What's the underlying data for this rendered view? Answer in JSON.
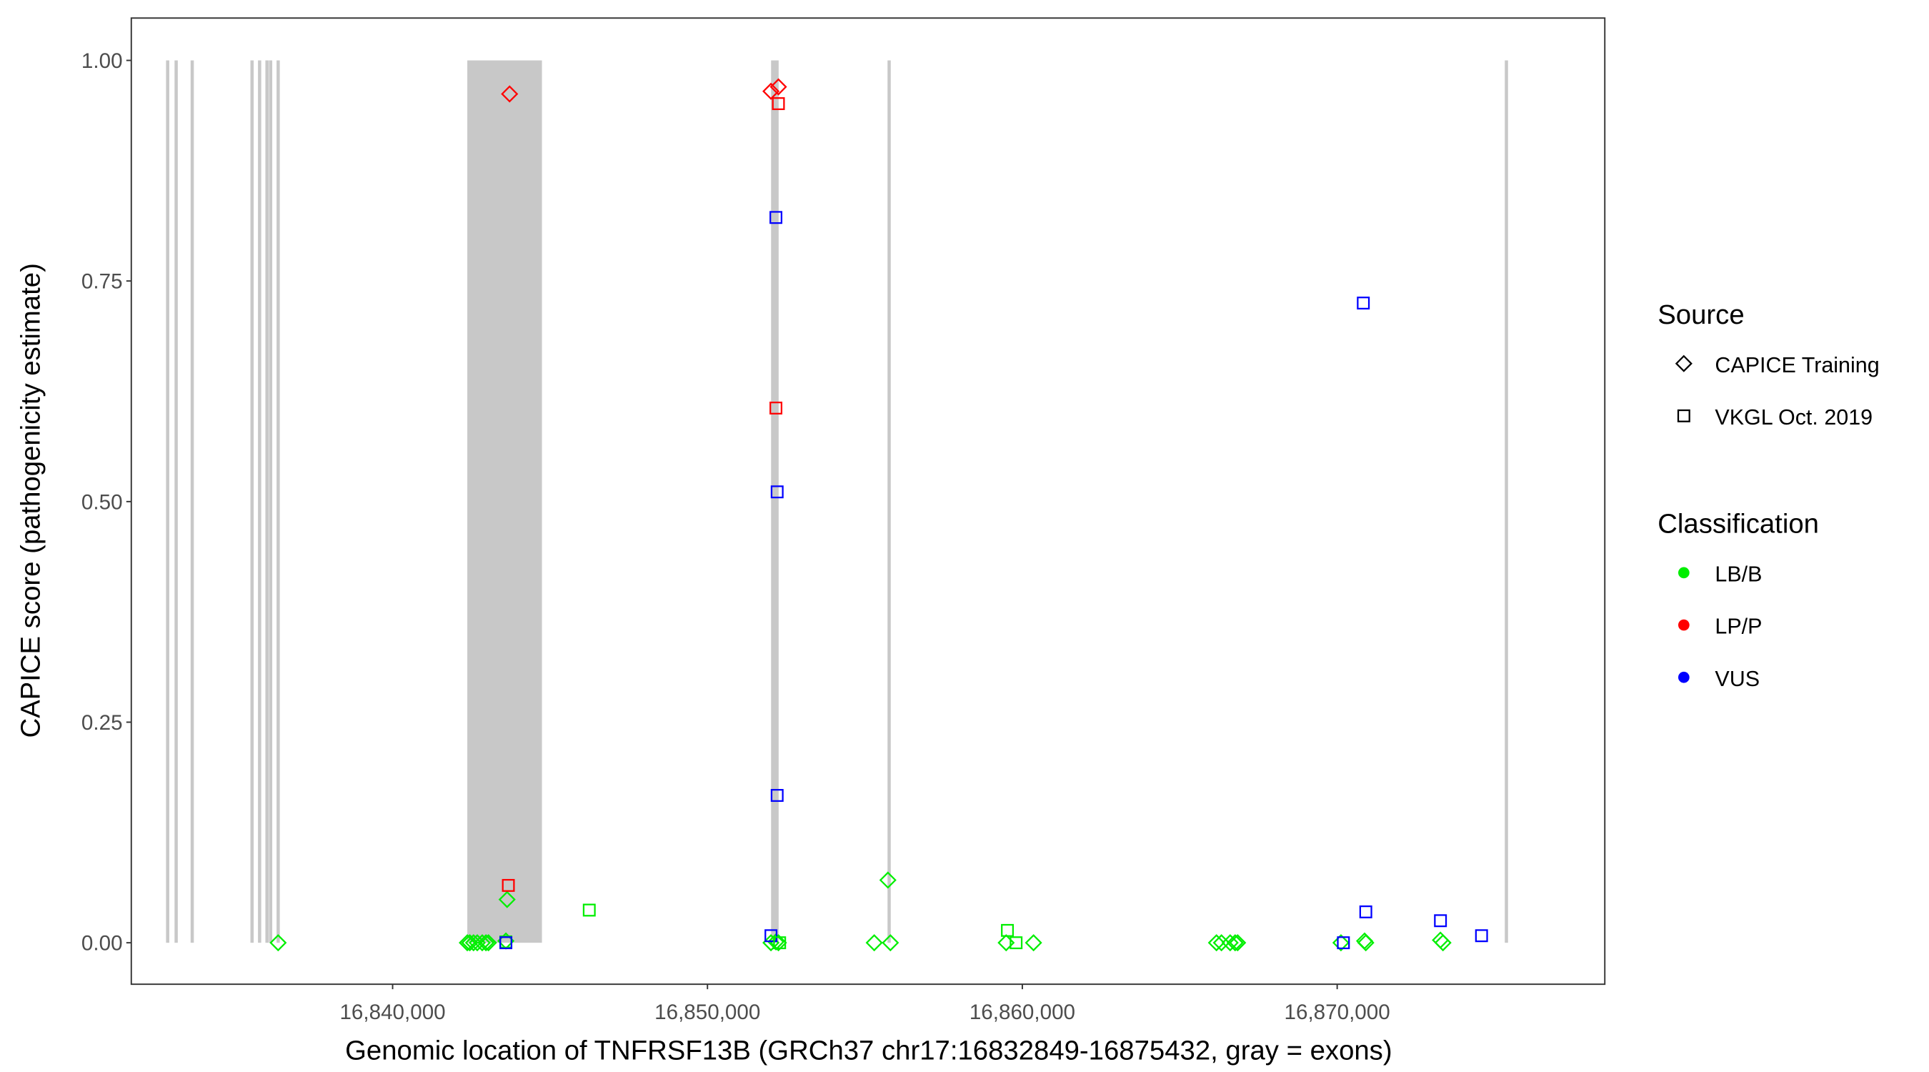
{
  "chart_data": {
    "type": "scatter",
    "xlabel": "Genomic location of TNFRSF13B (GRCh37 chr17:16832849-16875432, gray = exons)",
    "ylabel": "CAPICE score (pathogenicity estimate)",
    "xlim": [
      16831700,
      16878500
    ],
    "ylim": [
      -0.047,
      1.048
    ],
    "x_ticks": [
      16840000,
      16850000,
      16860000,
      16870000
    ],
    "x_tick_labels": [
      "16,840,000",
      "16,850,000",
      "16,860,000",
      "16,870,000"
    ],
    "y_ticks": [
      0,
      0.25,
      0.5,
      0.75,
      1.0
    ],
    "y_tick_labels": [
      "0.00",
      "0.25",
      "0.50",
      "0.75",
      "1.00"
    ],
    "grid": false,
    "exons": [
      [
        16832830,
        16832880
      ],
      [
        16833100,
        16833150
      ],
      [
        16833610,
        16833660
      ],
      [
        16835510,
        16835560
      ],
      [
        16835750,
        16835800
      ],
      [
        16835985,
        16836035
      ],
      [
        16836100,
        16836150
      ],
      [
        16836340,
        16836390
      ],
      [
        16842372,
        16844743
      ],
      [
        16852020,
        16852260
      ],
      [
        16855740,
        16855800
      ],
      [
        16875350,
        16875400
      ]
    ],
    "exon_color": "#c8c8c8",
    "legend": {
      "placement": "right",
      "source": {
        "title": "Source",
        "entries": [
          {
            "label": "CAPICE Training",
            "shape": "diamond"
          },
          {
            "label": "VKGL Oct. 2019",
            "shape": "square"
          }
        ]
      },
      "classification": {
        "title": "Classification",
        "entries": [
          {
            "label": "LB/B",
            "color": "#00ee00"
          },
          {
            "label": "LP/P",
            "color": "#ff0000"
          },
          {
            "label": "VUS",
            "color": "#0000ff"
          }
        ]
      }
    },
    "points": [
      {
        "x": 16836364,
        "y": 0,
        "source": "CAPICE Training",
        "class": "LB/B"
      },
      {
        "x": 16842372,
        "y": 0,
        "source": "CAPICE Training",
        "class": "LB/B"
      },
      {
        "x": 16842451,
        "y": 0,
        "source": "CAPICE Training",
        "class": "LB/B"
      },
      {
        "x": 16842569,
        "y": 0,
        "source": "CAPICE Training",
        "class": "LB/B"
      },
      {
        "x": 16842688,
        "y": 0,
        "source": "CAPICE Training",
        "class": "LB/B"
      },
      {
        "x": 16842846,
        "y": 0,
        "source": "CAPICE Training",
        "class": "LB/B"
      },
      {
        "x": 16842964,
        "y": 0,
        "source": "CAPICE Training",
        "class": "LB/B"
      },
      {
        "x": 16843043,
        "y": 0,
        "source": "CAPICE Training",
        "class": "LB/B"
      },
      {
        "x": 16843597,
        "y": 0.002,
        "source": "CAPICE Training",
        "class": "LB/B"
      },
      {
        "x": 16843636,
        "y": 0.049,
        "source": "CAPICE Training",
        "class": "LB/B"
      },
      {
        "x": 16843715,
        "y": 0.962,
        "source": "CAPICE Training",
        "class": "LP/P"
      },
      {
        "x": 16852016,
        "y": 0.965,
        "source": "CAPICE Training",
        "class": "LP/P"
      },
      {
        "x": 16852253,
        "y": 0.97,
        "source": "CAPICE Training",
        "class": "LP/P"
      },
      {
        "x": 16852016,
        "y": 0,
        "source": "CAPICE Training",
        "class": "LB/B"
      },
      {
        "x": 16852174,
        "y": 0.001,
        "source": "CAPICE Training",
        "class": "LB/B"
      },
      {
        "x": 16852253,
        "y": 0,
        "source": "CAPICE Training",
        "class": "LB/B"
      },
      {
        "x": 16855296,
        "y": 0,
        "source": "CAPICE Training",
        "class": "LB/B"
      },
      {
        "x": 16855810,
        "y": 0,
        "source": "CAPICE Training",
        "class": "LB/B"
      },
      {
        "x": 16855731,
        "y": 0.071,
        "source": "CAPICE Training",
        "class": "LB/B"
      },
      {
        "x": 16859486,
        "y": 0,
        "source": "CAPICE Training",
        "class": "LB/B"
      },
      {
        "x": 16860356,
        "y": 0,
        "source": "CAPICE Training",
        "class": "LB/B"
      },
      {
        "x": 16866166,
        "y": 0,
        "source": "CAPICE Training",
        "class": "LB/B"
      },
      {
        "x": 16866324,
        "y": 0,
        "source": "CAPICE Training",
        "class": "LB/B"
      },
      {
        "x": 16866601,
        "y": 0,
        "source": "CAPICE Training",
        "class": "LB/B"
      },
      {
        "x": 16866759,
        "y": 0,
        "source": "CAPICE Training",
        "class": "LB/B"
      },
      {
        "x": 16866838,
        "y": 0,
        "source": "CAPICE Training",
        "class": "LB/B"
      },
      {
        "x": 16870119,
        "y": 0,
        "source": "CAPICE Training",
        "class": "LB/B"
      },
      {
        "x": 16870870,
        "y": 0.002,
        "source": "CAPICE Training",
        "class": "LB/B"
      },
      {
        "x": 16870909,
        "y": 0,
        "source": "CAPICE Training",
        "class": "LB/B"
      },
      {
        "x": 16873280,
        "y": 0.003,
        "source": "CAPICE Training",
        "class": "LB/B"
      },
      {
        "x": 16873360,
        "y": 0,
        "source": "CAPICE Training",
        "class": "LB/B"
      },
      {
        "x": 16843597,
        "y": 0.001,
        "source": "VKGL Oct. 2019",
        "class": "LB/B"
      },
      {
        "x": 16843597,
        "y": 0,
        "source": "VKGL Oct. 2019",
        "class": "VUS"
      },
      {
        "x": 16843676,
        "y": 0.065,
        "source": "VKGL Oct. 2019",
        "class": "LP/P"
      },
      {
        "x": 16846245,
        "y": 0.037,
        "source": "VKGL Oct. 2019",
        "class": "LB/B"
      },
      {
        "x": 16852253,
        "y": 0.951,
        "source": "VKGL Oct. 2019",
        "class": "LP/P"
      },
      {
        "x": 16852174,
        "y": 0.822,
        "source": "VKGL Oct. 2019",
        "class": "VUS"
      },
      {
        "x": 16852174,
        "y": 0.606,
        "source": "VKGL Oct. 2019",
        "class": "LP/P"
      },
      {
        "x": 16852213,
        "y": 0.511,
        "source": "VKGL Oct. 2019",
        "class": "VUS"
      },
      {
        "x": 16852213,
        "y": 0.167,
        "source": "VKGL Oct. 2019",
        "class": "VUS"
      },
      {
        "x": 16852016,
        "y": 0.008,
        "source": "VKGL Oct. 2019",
        "class": "VUS"
      },
      {
        "x": 16852292,
        "y": 0,
        "source": "VKGL Oct. 2019",
        "class": "LB/B"
      },
      {
        "x": 16859526,
        "y": 0.014,
        "source": "VKGL Oct. 2019",
        "class": "LB/B"
      },
      {
        "x": 16859802,
        "y": 0,
        "source": "VKGL Oct. 2019",
        "class": "LB/B"
      },
      {
        "x": 16870830,
        "y": 0.725,
        "source": "VKGL Oct. 2019",
        "class": "VUS"
      },
      {
        "x": 16870909,
        "y": 0.035,
        "source": "VKGL Oct. 2019",
        "class": "VUS"
      },
      {
        "x": 16870198,
        "y": 0,
        "source": "VKGL Oct. 2019",
        "class": "VUS"
      },
      {
        "x": 16873280,
        "y": 0.025,
        "source": "VKGL Oct. 2019",
        "class": "VUS"
      },
      {
        "x": 16874585,
        "y": 0.008,
        "source": "VKGL Oct. 2019",
        "class": "VUS"
      }
    ]
  }
}
